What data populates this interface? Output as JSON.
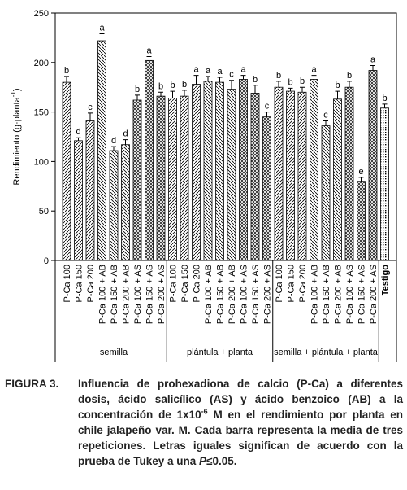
{
  "chart_data": {
    "type": "bar",
    "y_label": [
      "Rendimiento (g·planta",
      "-1",
      ")"
    ],
    "categories": [
      "P-Ca 100",
      "P-Ca 150",
      "P-Ca 200",
      "P-Ca 100 + AB",
      "P-Ca 150 + AB",
      "P-Ca 200 + AB",
      "P-Ca 100 + AS",
      "P-Ca 150 + AS",
      "P-Ca 200 + AS",
      "P-Ca 100",
      "P-Ca 150",
      "P-Ca 200",
      "P-Ca 100 + AB",
      "P-Ca 150 + AB",
      "P-Ca 200 + AB",
      "P-Ca 100 + AS",
      "P-Ca 150 + AS",
      "P-Ca 200 + AS",
      "P-Ca 100",
      "P-Ca 150",
      "P-Ca 200",
      "P-Ca 100 + AB",
      "P-Ca 150 + AB",
      "P-Ca 200 + AB",
      "P-Ca 100 + AS",
      "P-Ca 150 + AS",
      "P-Ca 200 + AS",
      "Testigo"
    ],
    "values": [
      180,
      121,
      141,
      222,
      111,
      117,
      162,
      202,
      166,
      164,
      166,
      178,
      181,
      180,
      173,
      183,
      169,
      145,
      175,
      171,
      170,
      183,
      136,
      163,
      175,
      80,
      192,
      154
    ],
    "errors": [
      6,
      3,
      8,
      7,
      4,
      5,
      5,
      4,
      4,
      7,
      6,
      9,
      5,
      5,
      9,
      4,
      8,
      5,
      6,
      3,
      5,
      4,
      5,
      8,
      6,
      4,
      5,
      4
    ],
    "letters": [
      "b",
      "d",
      "c",
      "a",
      "d",
      "d",
      "b",
      "a",
      "b",
      "b",
      "b",
      "a",
      "a",
      "a",
      "c",
      "a",
      "b",
      "c",
      "b",
      "b",
      "b",
      "a",
      "c",
      "b",
      "b",
      "e",
      "a",
      "b"
    ],
    "patterns": [
      "fwd",
      "fwd",
      "fwd",
      "back",
      "back",
      "back",
      "cross",
      "cross",
      "cross",
      "fwd",
      "fwd",
      "fwd",
      "back",
      "back",
      "back",
      "cross",
      "cross",
      "cross",
      "fwd",
      "fwd",
      "fwd",
      "back",
      "back",
      "back",
      "cross",
      "cross",
      "cross",
      "dots"
    ],
    "groups": [
      {
        "label": "semilla",
        "start": 0,
        "end": 8
      },
      {
        "label": "plántula + planta",
        "start": 9,
        "end": 17
      },
      {
        "label": "semilla + plántula + planta",
        "start": 18,
        "end": 26
      }
    ],
    "ylim": [
      0,
      250
    ],
    "yticks": [
      0,
      50,
      100,
      150,
      200,
      250
    ],
    "color": "#000000"
  },
  "caption": {
    "label": "FIGURA 3.",
    "parts": [
      "Influencia de prohexadiona de calcio (P-Ca) a diferentes dosis, ácido salicílico (AS) y ácido benzoico (AB) a la concentración de 1x10",
      "-6",
      " M en el rendimiento por planta en chile jalapeño var. M. Cada barra representa la media de tres repeticiones. Letras iguales significan de acuerdo con la prueba de Tukey a una ",
      "P",
      "≤0.05."
    ]
  }
}
